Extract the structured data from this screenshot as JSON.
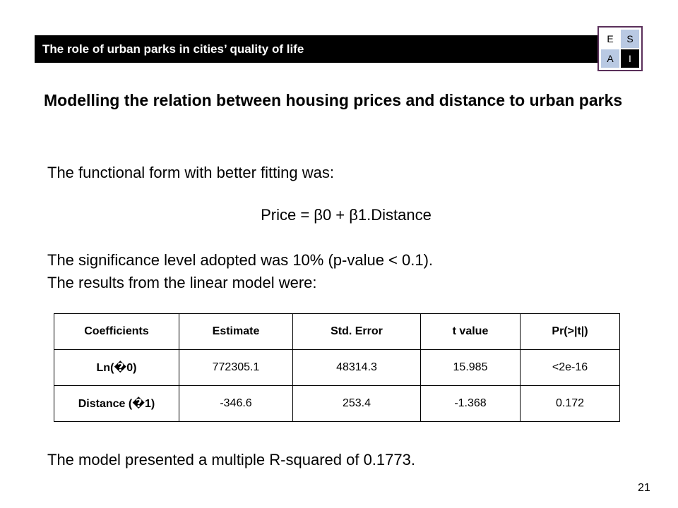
{
  "header": {
    "title": "The role of urban parks in cities’ quality of life"
  },
  "logo": {
    "cells": [
      "E",
      "S",
      "A",
      "I"
    ]
  },
  "subtitle": "Modelling the relation between housing prices and distance to urban parks",
  "body": {
    "intro": "The functional form with better fitting was:",
    "equation": "Price = β0 + β1.Distance",
    "significance": "The significance level adopted was 10% (p-value < 0.1).",
    "results_intro": "The results from the linear model were:",
    "r_squared": "The model presented a multiple R-squared of 0.1773."
  },
  "table": {
    "headers": [
      "Coefficients",
      "Estimate",
      "Std. Error",
      "t value",
      "Pr(>|t|)"
    ],
    "rows": [
      [
        "Ln(�0)",
        "772305.1",
        "48314.3",
        "15.985",
        "<2e-16"
      ],
      [
        "Distance (�1)",
        "-346.6",
        "253.4",
        "-1.368",
        "0.172"
      ]
    ]
  },
  "page_number": "21"
}
